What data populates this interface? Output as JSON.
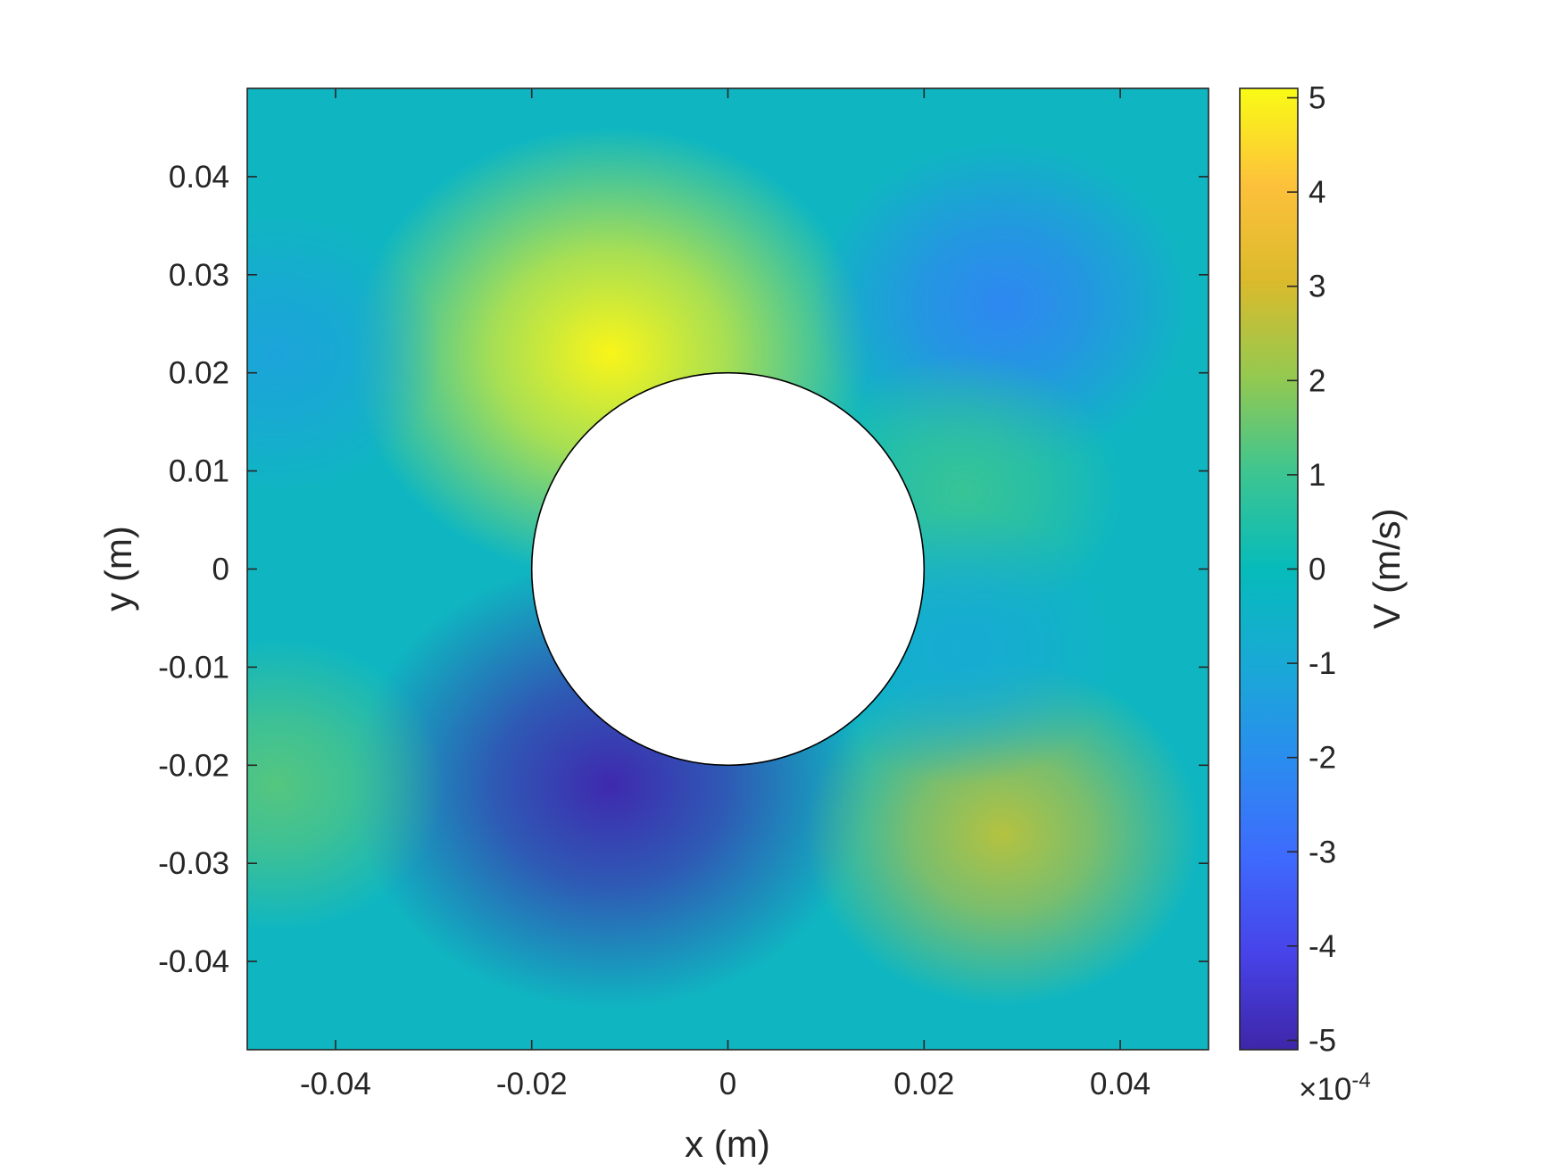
{
  "chart_data": {
    "type": "heatmap",
    "title": "",
    "xlabel": "x (m)",
    "ylabel": "y (m)",
    "xlim": [
      -0.049,
      0.049
    ],
    "ylim": [
      -0.049,
      0.049
    ],
    "x_ticks": [
      -0.04,
      -0.02,
      0,
      0.02,
      0.04
    ],
    "x_tick_labels": [
      "-0.04",
      "-0.02",
      "0",
      "0.02",
      "0.04"
    ],
    "y_ticks": [
      0.04,
      0.03,
      0.02,
      0.01,
      0,
      -0.01,
      -0.02,
      -0.03,
      -0.04
    ],
    "y_tick_labels": [
      "0.04",
      "0.03",
      "0.02",
      "0.01",
      "0",
      "-0.01",
      "-0.02",
      "-0.03",
      "-0.04"
    ],
    "grid": false,
    "colormap": "parula",
    "colorbar": {
      "label": "V (m/s)",
      "range": [
        -5.1,
        5.1
      ],
      "ticks": [
        5,
        4,
        3,
        2,
        1,
        0,
        -1,
        -2,
        -3,
        -4,
        -5
      ],
      "tick_labels": [
        "5",
        "4",
        "3",
        "2",
        "1",
        "0",
        "-1",
        "-2",
        "-3",
        "-4",
        "-5"
      ],
      "exponent_prefix": "×10",
      "exponent": "-4"
    },
    "obstacle": {
      "shape": "circle",
      "center": [
        0,
        0
      ],
      "radius": 0.02
    },
    "field_features": [
      {
        "x": -0.012,
        "y": 0.022,
        "value": 5.0
      },
      {
        "x": -0.012,
        "y": -0.022,
        "value": -5.0
      },
      {
        "x": 0.028,
        "y": 0.027,
        "value": -2.2
      },
      {
        "x": 0.028,
        "y": -0.027,
        "value": 2.5
      },
      {
        "x": 0.024,
        "y": 0.008,
        "value": 0.9
      },
      {
        "x": 0.024,
        "y": -0.008,
        "value": -0.9
      },
      {
        "x": -0.046,
        "y": 0.022,
        "value": -1.2
      },
      {
        "x": -0.046,
        "y": -0.022,
        "value": 1.3
      }
    ]
  }
}
